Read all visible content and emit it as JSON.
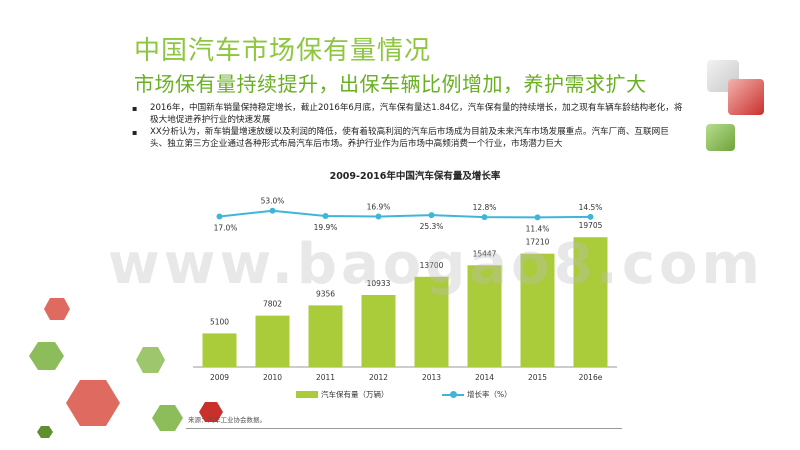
{
  "slide": {
    "title": "中国汽车市场保有量情况",
    "subtitle": "市场保有量持续提升，出保车辆比例增加，养护需求扩大",
    "bullets": [
      "2016年，中国新车销量保持稳定增长，截止2016年6月底，汽车保有量达1.84亿，汽车保有量的持续增长，加之现有车辆车龄结构老化，将极大地促进养护行业的快速发展",
      "XX分析认为，新车销量增速放缓以及利润的降低，使有着较高利润的汽车后市场成为目前及未来汽车市场发展重点。汽车厂商、互联网巨头、独立第三方企业通过各种形式布局汽车后市场。养护行业作为后市场中高频消费一个行业，市场潜力巨大"
    ],
    "source": "来源：汽车工业协会数据。",
    "watermark": "www.baogao8.com"
  },
  "colors": {
    "title": "#8dc63f",
    "bar": "#aacb3a",
    "line": "#3fb6d9",
    "accent_red": "#d9534f"
  },
  "chart_data": {
    "type": "bar",
    "title": "2009-2016年中国汽车保有量及增长率",
    "categories": [
      "2009",
      "2010",
      "2011",
      "2012",
      "2013",
      "2014",
      "2015",
      "2016e"
    ],
    "series": [
      {
        "name": "汽车保有量（万辆）",
        "type": "bar",
        "values": [
          5100,
          7802,
          9356,
          10933,
          13700,
          15447,
          17210,
          19705
        ]
      },
      {
        "name": "增长率（%）",
        "type": "line",
        "values": [
          17.0,
          53.0,
          19.9,
          16.9,
          25.3,
          12.8,
          11.4,
          14.5
        ],
        "labels": [
          "17.0%",
          "53.0%",
          "19.9%",
          "16.9%",
          "25.3%",
          "12.8%",
          "11.4%",
          "14.5%"
        ]
      }
    ],
    "legend_position": "bottom",
    "grid": false
  }
}
